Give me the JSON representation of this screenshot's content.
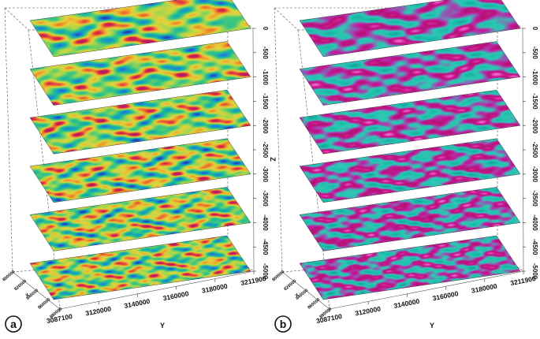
{
  "panels": [
    {
      "label": "a",
      "colormap": [
        "#1f3fb0",
        "#1e88d8",
        "#15b3a3",
        "#44c97a",
        "#a6d64c",
        "#e6d23a",
        "#ef8a2a",
        "#d8234a",
        "#b01a6a"
      ]
    },
    {
      "label": "b",
      "colormap": [
        "#14a6a0",
        "#19b8a8",
        "#22c3b0",
        "#2fc7b2",
        "#8a62b5",
        "#c2199a",
        "#b2126e",
        "#d61f9b",
        "#e86ad3"
      ]
    }
  ],
  "axes": {
    "z_label": "Z",
    "y_label": "Y",
    "x_label": "X",
    "z_ticks": [
      "0",
      "-500",
      "-1000",
      "-1500",
      "-2000",
      "-2500",
      "-3000",
      "-3500",
      "-4000",
      "-4500",
      "-5000"
    ],
    "y_ticks": [
      "3087100",
      "3120000",
      "3140000",
      "3160000",
      "3180000",
      "3211900"
    ],
    "x_ticks": [
      "800000",
      "820000",
      "840000",
      "860000",
      "880000"
    ]
  },
  "slice_depths": [
    0,
    -1000,
    -2000,
    -3000,
    -4000,
    -5000
  ]
}
